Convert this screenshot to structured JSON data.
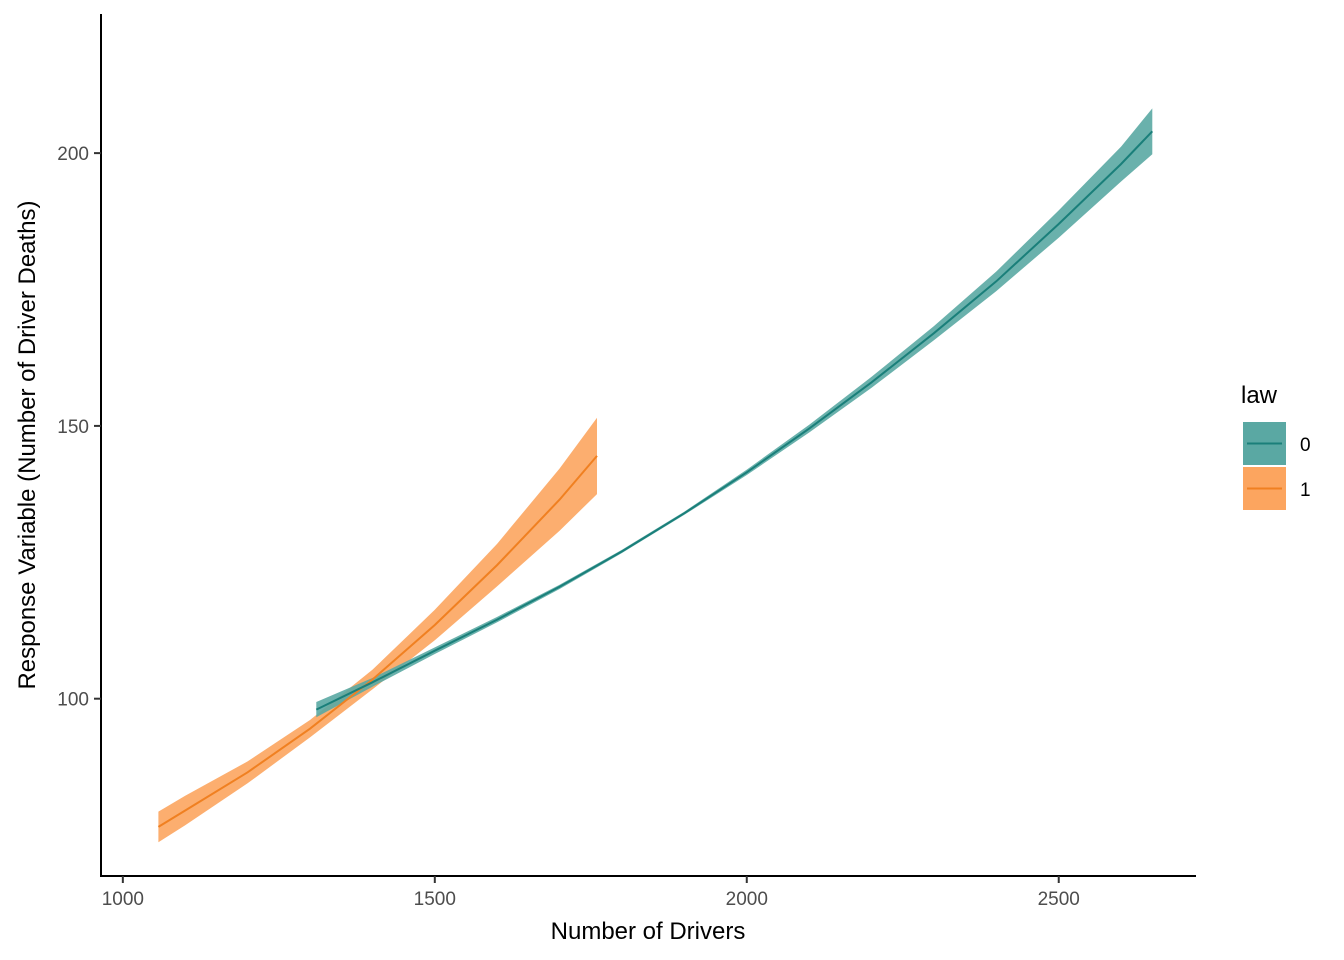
{
  "chart_data": {
    "type": "line",
    "title": "",
    "xlabel": "Number of Drivers",
    "ylabel": "Response Variable (Number of Driver Deaths)",
    "xlim": [
      965,
      2720
    ],
    "ylim": [
      67.5,
      225.5
    ],
    "x_ticks": [
      1000,
      1500,
      2000,
      2500
    ],
    "x_tick_labels": [
      "1000",
      "1500",
      "2000",
      "2500"
    ],
    "y_ticks": [
      100,
      150,
      200
    ],
    "y_tick_labels": [
      "100",
      "150",
      "200"
    ],
    "grid": false,
    "legend": {
      "title": "law",
      "position": "right"
    },
    "series": [
      {
        "name": "0",
        "color": "#1a7f7a",
        "ribbon_color": "#5aa8a3",
        "x": [
          1310,
          1400,
          1500,
          1600,
          1700,
          1800,
          1900,
          2000,
          2100,
          2200,
          2300,
          2400,
          2500,
          2600,
          2650
        ],
        "y": [
          98,
          103,
          108.8,
          114.5,
          120.5,
          127,
          134,
          141.5,
          149.5,
          158,
          167,
          176.5,
          187,
          198,
          204
        ],
        "lower": [
          96.6,
          102.2,
          108.2,
          114,
          120.1,
          126.7,
          133.7,
          141,
          148.8,
          157,
          165.7,
          174.7,
          184.5,
          194.8,
          199.8
        ],
        "upper": [
          99.4,
          103.8,
          109.4,
          115,
          120.9,
          127.3,
          134.3,
          142,
          150.2,
          159,
          168.3,
          178.3,
          189.5,
          201.2,
          208.2
        ]
      },
      {
        "name": "1",
        "color": "#f08021",
        "ribbon_color": "#fca55f",
        "x": [
          1057,
          1100,
          1200,
          1300,
          1400,
          1500,
          1600,
          1700,
          1760
        ],
        "y": [
          76.5,
          79.5,
          86.5,
          94.5,
          103.5,
          113.5,
          124.5,
          136.5,
          144.5
        ],
        "lower": [
          73.7,
          76.8,
          84.5,
          92.9,
          101.7,
          110.7,
          120.6,
          130.8,
          137.5
        ],
        "upper": [
          79.3,
          82.2,
          88.5,
          96.1,
          105.3,
          116.3,
          128.4,
          142.2,
          151.5
        ]
      }
    ]
  }
}
